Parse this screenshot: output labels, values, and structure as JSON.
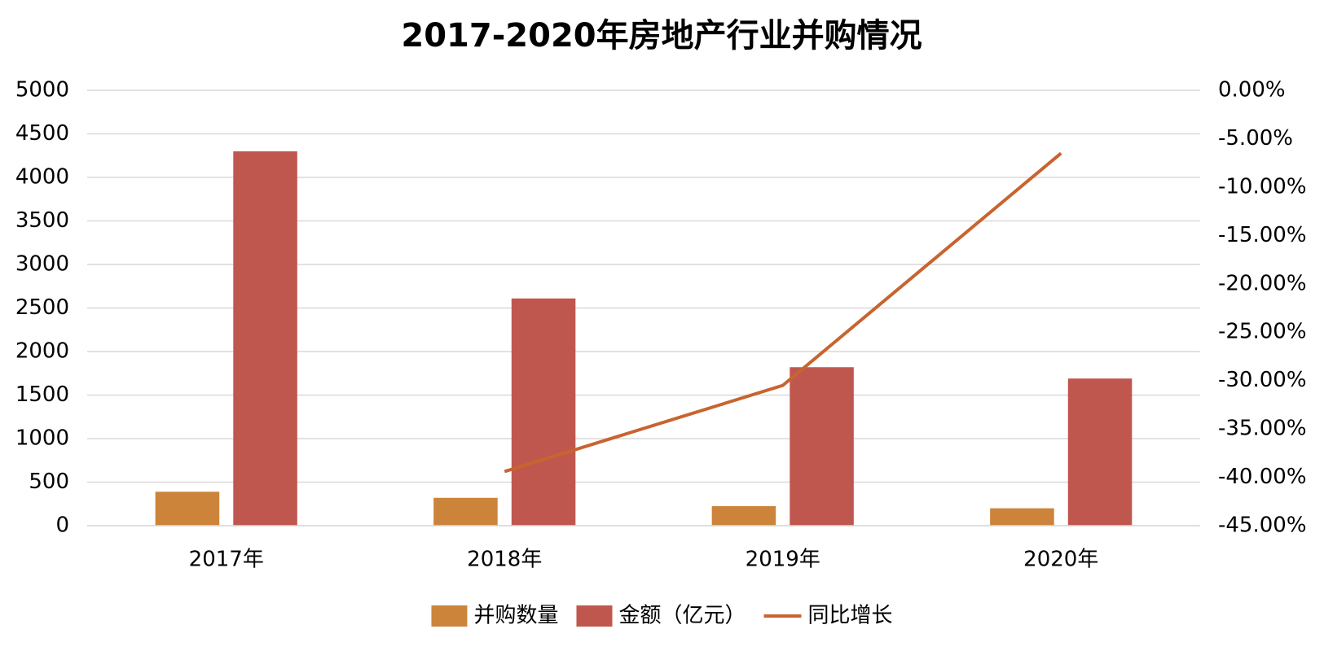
{
  "chart_data": {
    "type": "bar",
    "title": "2017-2020年房地产行业并购情况",
    "categories": [
      "2017年",
      "2018年",
      "2019年",
      "2020年"
    ],
    "series": [
      {
        "name": "并购数量",
        "color": "#cc843a",
        "values": [
          390,
          320,
          225,
          200
        ]
      },
      {
        "name": "金额（亿元）",
        "color": "#c0574f",
        "values": [
          4300,
          2610,
          1820,
          1690
        ]
      },
      {
        "name": "同比增长",
        "color": "#c8642f",
        "type": "line",
        "axis": "y2",
        "values": [
          null,
          -39.4,
          -30.5,
          -6.5
        ]
      }
    ],
    "ylim": [
      0,
      5000
    ],
    "yticks": [
      0,
      500,
      1000,
      1500,
      2000,
      2500,
      3000,
      3500,
      4000,
      4500,
      5000
    ],
    "y2lim": [
      -45,
      0
    ],
    "y2ticks": [
      {
        "value": -45,
        "label": "-45.00%"
      },
      {
        "value": -40,
        "label": "-40.00%"
      },
      {
        "value": -35,
        "label": "-35.00%"
      },
      {
        "value": -30,
        "label": "-30.00%"
      },
      {
        "value": -25,
        "label": "-25.00%"
      },
      {
        "value": -20,
        "label": "-20.00%"
      },
      {
        "value": -15,
        "label": "-15.00%"
      },
      {
        "value": -10,
        "label": "-10.00%"
      },
      {
        "value": -5,
        "label": "-5.00%"
      },
      {
        "value": 0,
        "label": "0.00%"
      }
    ],
    "grid": true,
    "legend": "bottom"
  }
}
